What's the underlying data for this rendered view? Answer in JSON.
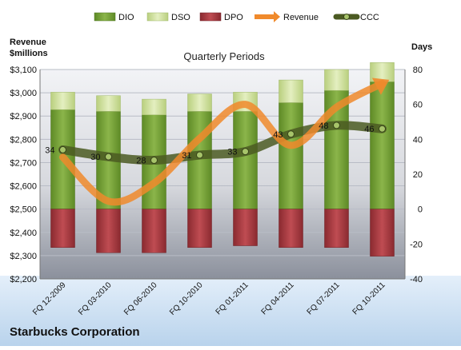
{
  "chart_data": {
    "type": "bar",
    "title": "Quarterly Periods",
    "footer": "Starbucks Corporation",
    "left_axis_label": [
      "Revenue",
      "$millions"
    ],
    "right_axis_label": "Days",
    "categories": [
      "FQ 12-2009",
      "FQ 03-2010",
      "FQ 06-2010",
      "FQ 10-2010",
      "FQ 01-2011",
      "FQ 04-2011",
      "FQ 07-2011",
      "FQ 10-2011"
    ],
    "left_axis": {
      "min": 2200,
      "max": 3100,
      "step": 100,
      "tick_labels": [
        "$2,200",
        "$2,300",
        "$2,400",
        "$2,500",
        "$2,600",
        "$2,700",
        "$2,800",
        "$2,900",
        "$3,000",
        "$3,100"
      ]
    },
    "right_axis": {
      "min": -40,
      "max": 80,
      "step": 20,
      "tick_labels": [
        "-40",
        "-20",
        "0",
        "20",
        "40",
        "60",
        "80"
      ]
    },
    "legend": {
      "position": "top",
      "entries": [
        "DIO",
        "DSO",
        "DPO",
        "Revenue",
        "CCC"
      ]
    },
    "series": [
      {
        "name": "DIO",
        "axis": "right",
        "kind": "bar-stack",
        "values": [
          57,
          56,
          54,
          56,
          56,
          61,
          68,
          73
        ]
      },
      {
        "name": "DSO",
        "axis": "right",
        "kind": "bar-stack",
        "values": [
          10,
          9,
          9,
          10,
          11,
          13,
          12,
          11
        ]
      },
      {
        "name": "DPO",
        "axis": "right",
        "kind": "bar-negative",
        "values": [
          -22,
          -25,
          -25,
          -22,
          -21,
          -22,
          -22,
          -27
        ]
      },
      {
        "name": "Revenue",
        "axis": "left",
        "kind": "line",
        "values": [
          2723,
          2534,
          2612,
          2804,
          2950,
          2774,
          2938,
          3040
        ]
      },
      {
        "name": "CCC",
        "axis": "right",
        "kind": "line-labeled",
        "values": [
          34,
          30,
          28,
          31,
          33,
          43,
          48,
          46
        ],
        "labels": [
          "34",
          "30",
          "28",
          "31",
          "33",
          "43",
          "48",
          "46"
        ]
      }
    ],
    "colors": {
      "DIO": "#79a33a",
      "DSO": "#cfe09c",
      "DPO": "#a33a3f",
      "Revenue": "#f08a2c",
      "CCC": "#5a6b2a",
      "plot_top": "#eef0f4",
      "plot_bottom": "#8f94a0",
      "bottom_band": "#cde2f5"
    },
    "grid": true
  }
}
